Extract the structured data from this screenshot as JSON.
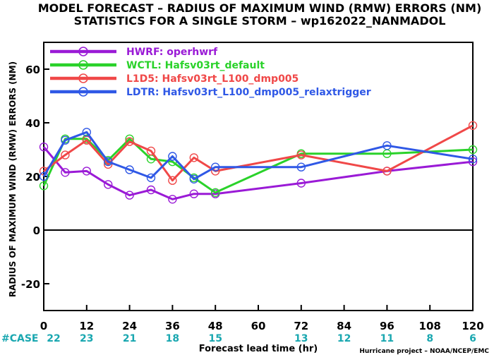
{
  "chart_data": {
    "type": "line",
    "title": "MODEL FORECAST – RADIUS OF MAXIMUM WIND (RMW) ERRORS (NM)",
    "subtitle": "STATISTICS FOR A SINGLE STORM – wp162022_NANMADOL",
    "xlabel": "Forecast lead time (hr)",
    "ylabel": "RADIUS OF MAXIMUM WIND (RMW) ERRORS (NM)",
    "xlim": [
      0,
      120
    ],
    "ylim": [
      -30,
      70
    ],
    "xticks": [
      0,
      12,
      24,
      36,
      48,
      60,
      72,
      84,
      96,
      108,
      120
    ],
    "yticks": [
      -20,
      0,
      20,
      40,
      60
    ],
    "ytick_labels": [
      "-20",
      "0",
      "20",
      "40",
      "60"
    ],
    "grid": false,
    "zero_line": true,
    "legend_position": "top-left",
    "case_label": "#CASE",
    "case_counts": [
      "22",
      "23",
      "21",
      "18",
      "15",
      "13",
      "12",
      "11",
      "8",
      "6"
    ],
    "case_hours": [
      0,
      12,
      24,
      36,
      48,
      72,
      84,
      96,
      108,
      120
    ],
    "credit": "Hurricane project – NOAA/NCEP/EMC",
    "series": [
      {
        "name": "HWRF:  operhwrf",
        "color": "#9a1ad6",
        "x": [
          0,
          6,
          12,
          18,
          24,
          30,
          36,
          42,
          48,
          72,
          96,
          120
        ],
        "y": [
          31,
          21.5,
          22,
          17,
          13,
          15,
          11.5,
          13.5,
          13.5,
          17.5,
          22,
          25.5
        ]
      },
      {
        "name": "WCTL:  Hafsv03rt_default",
        "color": "#2ad22a",
        "x": [
          0,
          6,
          12,
          18,
          24,
          30,
          36,
          42,
          48,
          72,
          96,
          120
        ],
        "y": [
          16.5,
          34,
          34,
          26,
          34,
          26.5,
          25.5,
          19.5,
          14,
          28.5,
          28.5,
          30
        ]
      },
      {
        "name": "L1D5:  Hafsv03rt_L100_dmp005",
        "color": "#f04848",
        "x": [
          0,
          6,
          12,
          18,
          24,
          30,
          36,
          42,
          48,
          72,
          96,
          120
        ],
        "y": [
          22,
          28,
          33.5,
          24.5,
          33,
          29.5,
          18.5,
          27,
          22,
          28,
          22,
          39
        ]
      },
      {
        "name": "LDTR:  Hafsv03rt_L100_dmp005_relaxtrigger",
        "color": "#2f58e6",
        "x": [
          0,
          6,
          12,
          18,
          24,
          30,
          36,
          42,
          48,
          72,
          96,
          120
        ],
        "y": [
          20,
          33.5,
          36.5,
          25.5,
          22.5,
          19.5,
          27.5,
          19,
          23.5,
          23.5,
          31.5,
          26.5
        ]
      }
    ]
  }
}
